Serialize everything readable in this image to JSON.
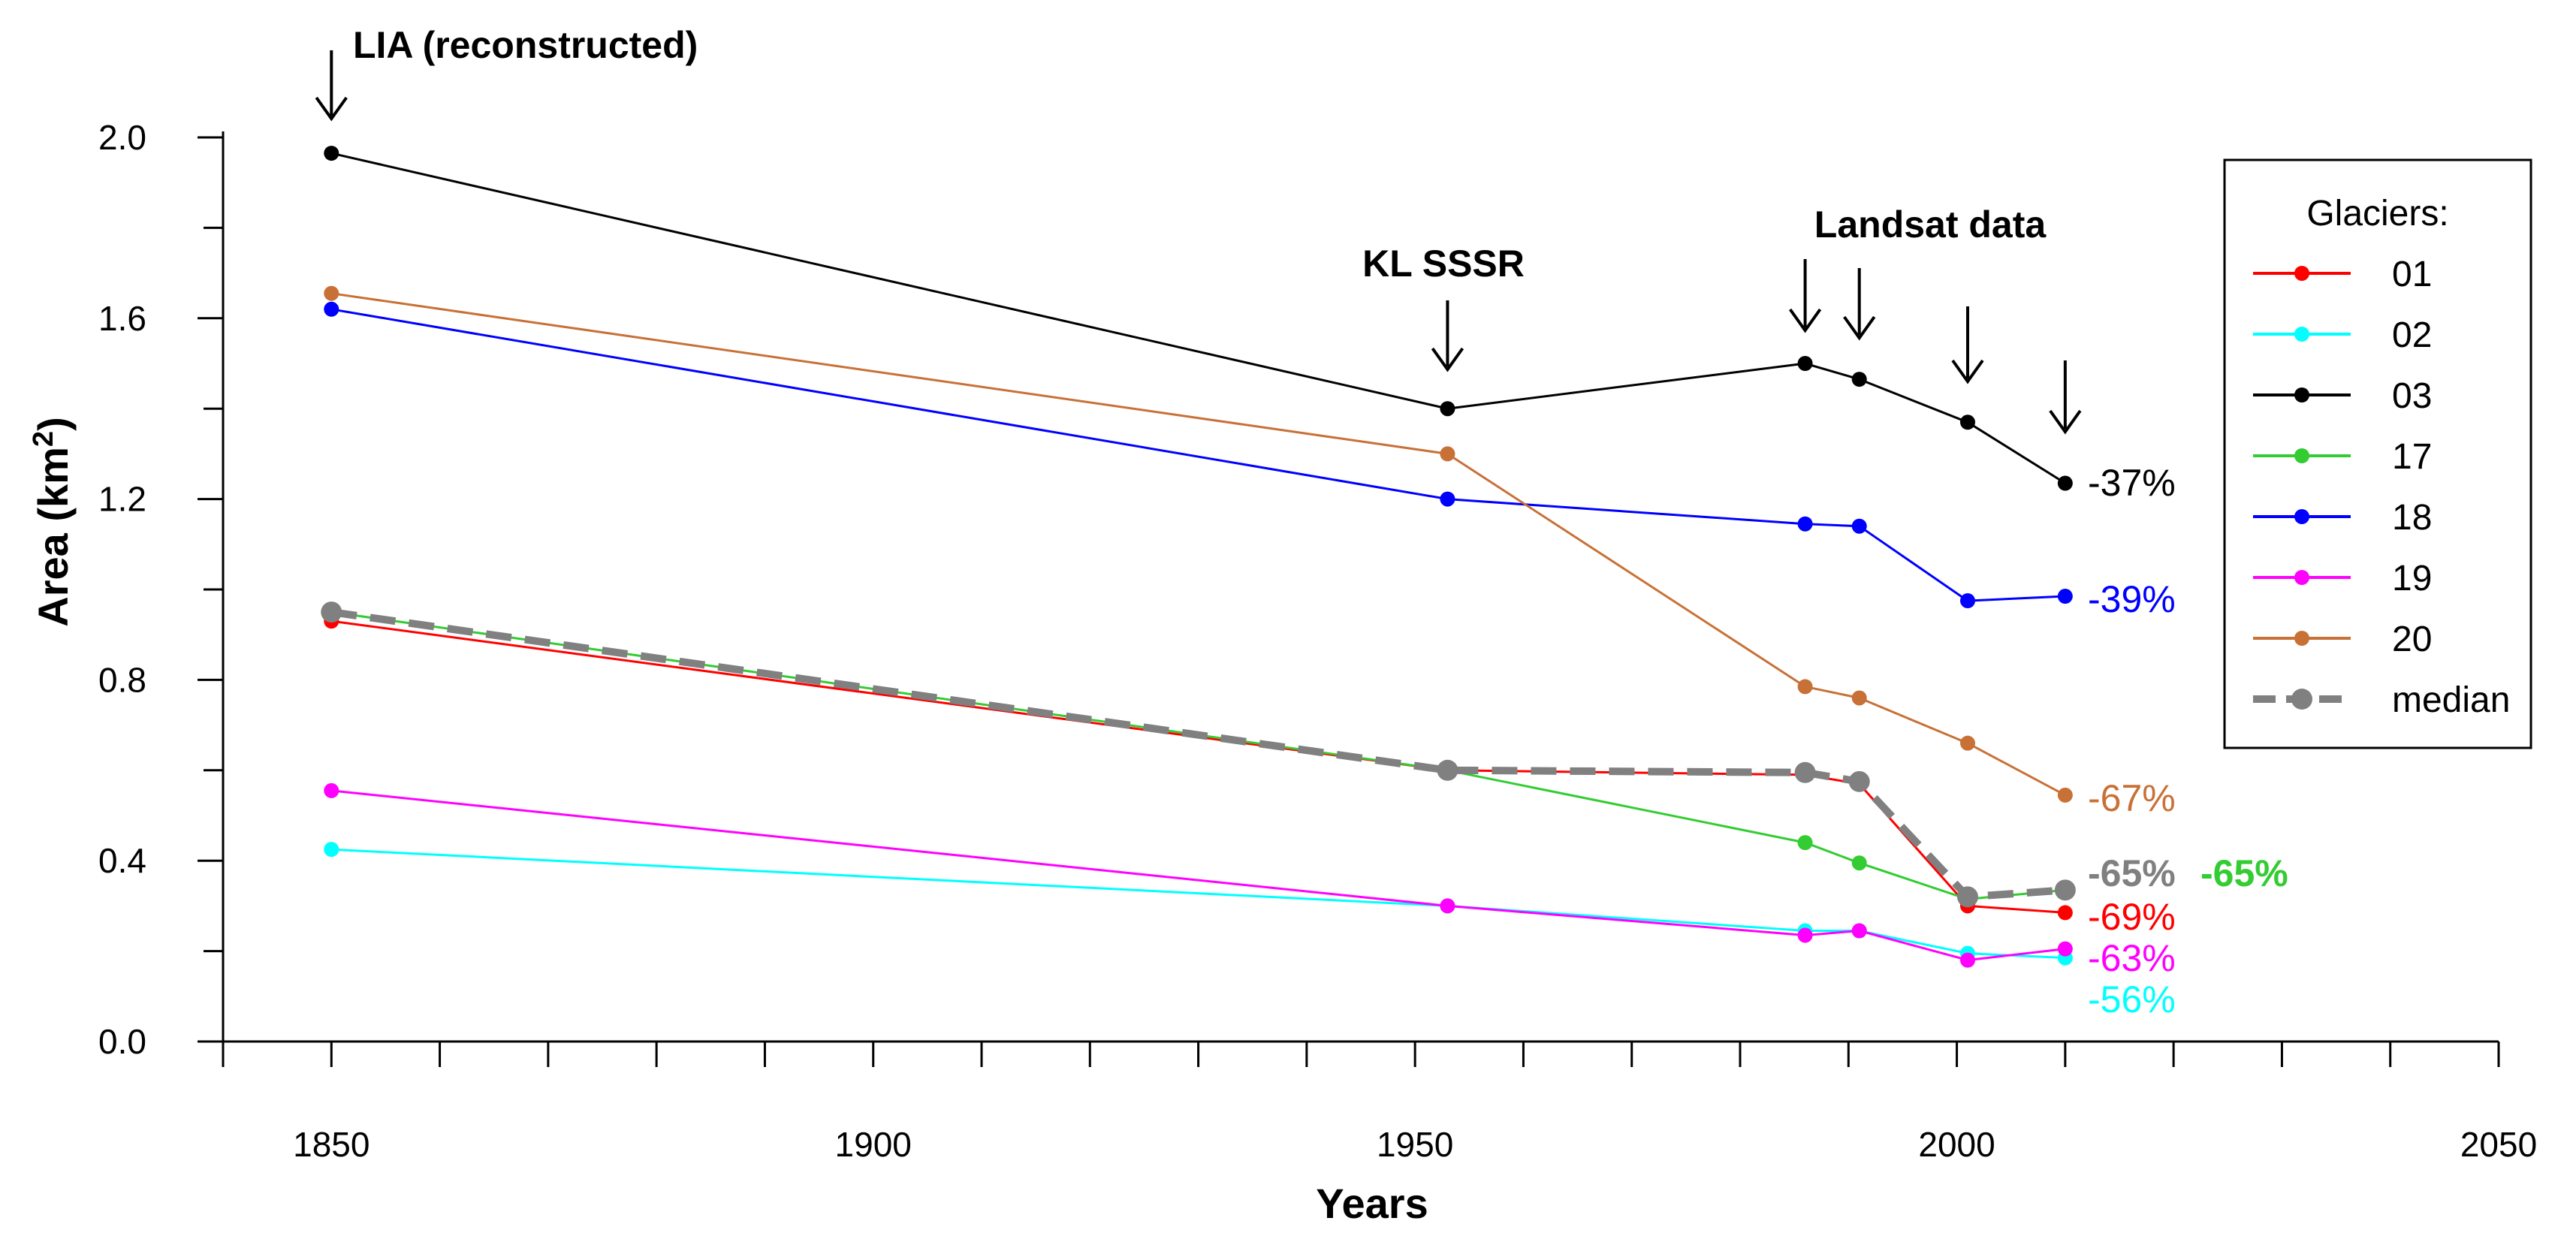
{
  "chart_data": {
    "type": "line",
    "title": "",
    "xlabel": "Years",
    "ylabel": "Area (km",
    "ylabel_sup": "2",
    "ylabel_close": ")",
    "xlim": [
      1840,
      2050
    ],
    "ylim": [
      0,
      2.0
    ],
    "x_ticks": [
      1850,
      1900,
      1950,
      2000,
      2050
    ],
    "x_tick_labels": [
      "1850",
      "1900",
      "1950",
      "2000",
      "2050"
    ],
    "x_minor_step": 10,
    "y_ticks": [
      0,
      0.4,
      0.8,
      1.2,
      1.6,
      2.0
    ],
    "y_tick_labels": [
      "0.0",
      "0.4",
      "0.8",
      "1.2",
      "1.6",
      "2.0"
    ],
    "y_minor_step": 0.2,
    "x": [
      1850,
      1953,
      1986,
      1991,
      2001,
      2010
    ],
    "series": [
      {
        "name": "01",
        "color": "#ff0000",
        "values": [
          0.93,
          0.6,
          0.59,
          0.57,
          0.3,
          0.285
        ],
        "change_label": "-69%"
      },
      {
        "name": "02",
        "color": "#00ffff",
        "values": [
          0.425,
          0.3,
          0.245,
          0.245,
          0.195,
          0.185
        ],
        "change_label": "-56%"
      },
      {
        "name": "03",
        "color": "#000000",
        "values": [
          1.965,
          1.4,
          1.5,
          1.465,
          1.37,
          1.235
        ],
        "change_label": "-37%"
      },
      {
        "name": "17",
        "color": "#33cc33",
        "values": [
          0.95,
          0.6,
          0.44,
          0.395,
          0.315,
          0.335
        ],
        "change_label": "-65%"
      },
      {
        "name": "18",
        "color": "#0000ff",
        "values": [
          1.62,
          1.2,
          1.145,
          1.14,
          0.975,
          0.985
        ],
        "change_label": "-39%"
      },
      {
        "name": "19",
        "color": "#ff00ff",
        "values": [
          0.555,
          0.3,
          0.235,
          0.245,
          0.18,
          0.205
        ],
        "change_label": "-63%"
      },
      {
        "name": "20",
        "color": "#c87137",
        "values": [
          1.655,
          1.3,
          0.785,
          0.76,
          0.66,
          0.545
        ],
        "change_label": "-67%"
      },
      {
        "name": "median",
        "color": "#808080",
        "dashed": true,
        "values": [
          0.95,
          0.6,
          0.595,
          0.575,
          0.32,
          0.335
        ],
        "change_label": "-65%"
      }
    ],
    "legend": {
      "title": "Glaciers:",
      "position": "top-right"
    },
    "annotations": [
      {
        "text": "LIA (reconstructed)",
        "x": 1850,
        "arrows_at": [
          1850
        ]
      },
      {
        "text": "KL SSSR",
        "x": 1953,
        "arrows_at": [
          1953
        ]
      },
      {
        "text": "Landsat data",
        "x": 1991,
        "arrows_at": [
          1986,
          1991,
          2001,
          2010
        ]
      }
    ]
  }
}
